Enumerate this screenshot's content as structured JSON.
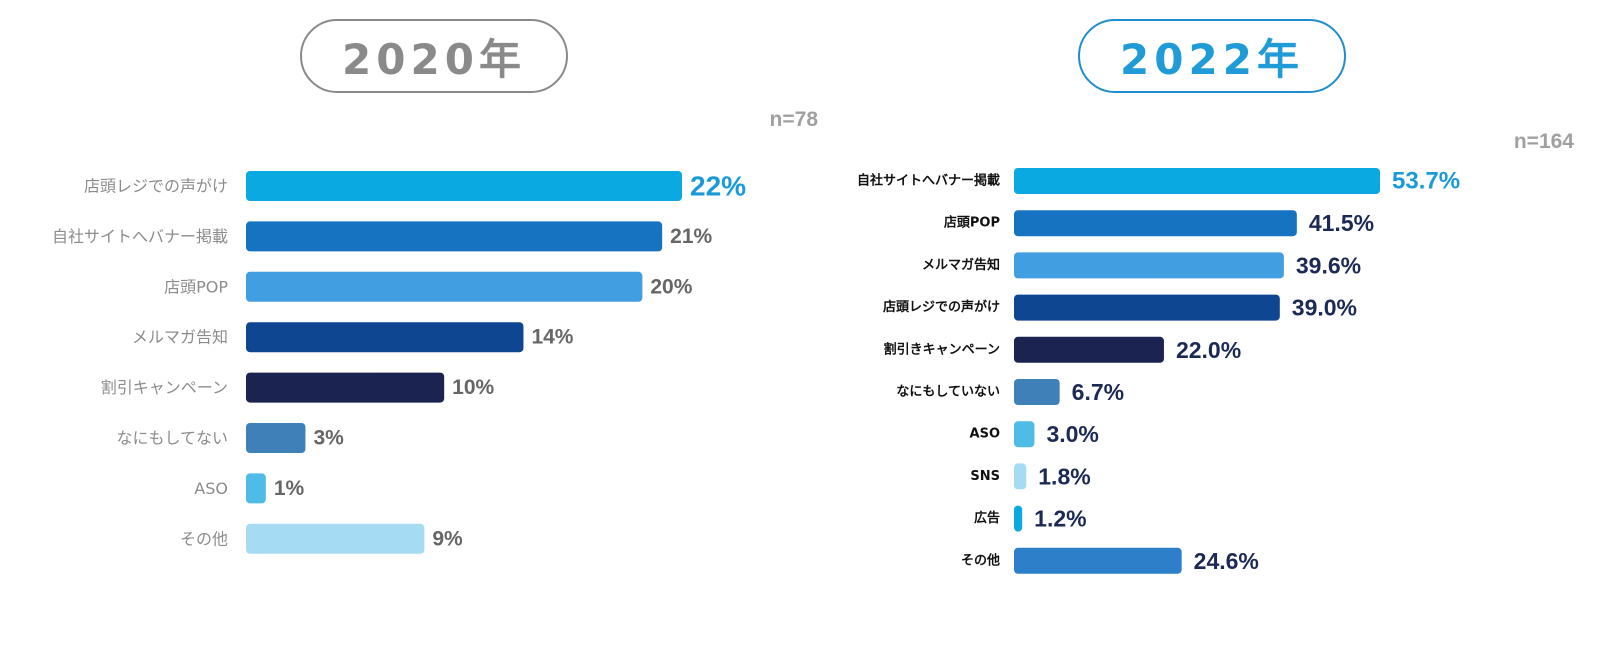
{
  "chart_data": [
    {
      "type": "bar",
      "orientation": "horizontal",
      "title": "2020年",
      "sample_size": "n=78",
      "categories": [
        "店頭レジでの声がけ",
        "自社サイトへバナー掲載",
        "店頭POP",
        "メルマガ告知",
        "割引キャンペーン",
        "なにもしてない",
        "ASO",
        "その他"
      ],
      "values": [
        22,
        21,
        20,
        14,
        10,
        3,
        1,
        9
      ],
      "value_labels": [
        "22%",
        "21%",
        "20%",
        "14%",
        "10%",
        "3%",
        "1%",
        "9%"
      ],
      "bar_colors": [
        "#0aa9e1",
        "#1573c2",
        "#419ee0",
        "#0e4692",
        "#1b2450",
        "#3f80b9",
        "#4ebce6",
        "#a6dcf3"
      ],
      "label_colors": [
        "#1a9bd7",
        "#666666",
        "#666666",
        "#666666",
        "#666666",
        "#666666",
        "#666666",
        "#666666"
      ],
      "xlim": [
        0,
        22
      ],
      "unit": "%"
    },
    {
      "type": "bar",
      "orientation": "horizontal",
      "title": "2022年",
      "sample_size": "n=164",
      "categories": [
        "自社サイトへバナー掲載",
        "店頭POP",
        "メルマガ告知",
        "店頭レジでの声がけ",
        "割引きキャンペーン",
        "なにもしていない",
        "ASO",
        "SNS",
        "広告",
        "その他"
      ],
      "values": [
        53.7,
        41.5,
        39.6,
        39.0,
        22.0,
        6.7,
        3.0,
        1.8,
        1.2,
        24.6
      ],
      "value_labels": [
        "53.7%",
        "41.5%",
        "39.6%",
        "39.0%",
        "22.0%",
        "6.7%",
        "3.0%",
        "1.8%",
        "1.2%",
        "24.6%"
      ],
      "bar_colors": [
        "#0aa9e1",
        "#1573c2",
        "#419ee0",
        "#0e4692",
        "#1b2450",
        "#3f80b9",
        "#4ebce6",
        "#a6dcf3",
        "#0aa9e1",
        "#2d7fc9"
      ],
      "label_colors": [
        "#1a9bd7",
        "#1b2a55",
        "#1b2a55",
        "#1b2a55",
        "#1b2a55",
        "#1b2a55",
        "#1b2a55",
        "#1b2a55",
        "#1b2a55",
        "#1b2a55"
      ],
      "xlim": [
        0,
        53.7
      ],
      "unit": "%"
    }
  ]
}
